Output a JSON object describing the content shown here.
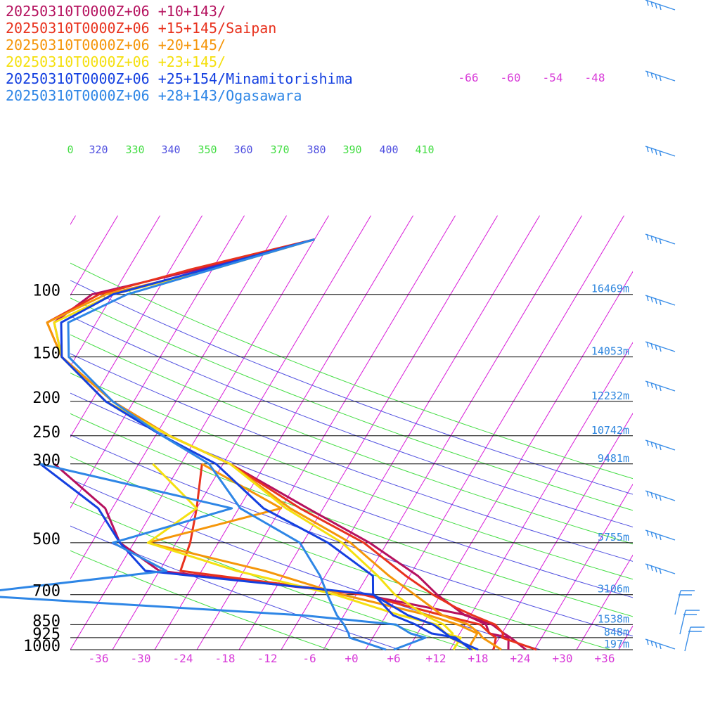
{
  "chart_data": {
    "type": "line",
    "subtype": "skew-t log-p sounding",
    "legend": [
      {
        "label": "20250310T0000Z+06 +10+143/",
        "color": "#b5115e"
      },
      {
        "label": "20250310T0000Z+06 +15+145/Saipan",
        "color": "#e8321e"
      },
      {
        "label": "20250310T0000Z+06 +20+145/",
        "color": "#f5960a"
      },
      {
        "label": "20250310T0000Z+06 +23+145/",
        "color": "#f5e010"
      },
      {
        "label": "20250310T0000Z+06 +25+154/Minamitorishima",
        "color": "#1440e0"
      },
      {
        "label": "20250310T0000Z+06 +28+143/Ogasawara",
        "color": "#2e86e6"
      }
    ],
    "pressure_levels": [
      {
        "p": 100,
        "label": "100",
        "height": "16469m"
      },
      {
        "p": 150,
        "label": "150",
        "height": "14053m"
      },
      {
        "p": 200,
        "label": "200",
        "height": "12232m"
      },
      {
        "p": 250,
        "label": "250",
        "height": "10742m"
      },
      {
        "p": 300,
        "label": "300",
        "height": "9481m"
      },
      {
        "p": 500,
        "label": "500",
        "height": "5755m"
      },
      {
        "p": 700,
        "label": "700",
        "height": "3106m"
      },
      {
        "p": 850,
        "label": "850",
        "height": "1538m"
      },
      {
        "p": 925,
        "label": "925",
        "height": "848m"
      },
      {
        "p": 1000,
        "label": "1000",
        "height": "197m"
      }
    ],
    "temperature_ticks": [
      "-36",
      "-30",
      "-24",
      "-18",
      "-12",
      "-6",
      "+0",
      "+6",
      "+12",
      "+18",
      "+24",
      "+30",
      "+36"
    ],
    "skewed_isotherm_labels": [
      "-66",
      "-60",
      "-54",
      "-48"
    ],
    "theta_labels": [
      {
        "label": "0",
        "color": "#44dd44"
      },
      {
        "label": "320",
        "color": "#5050e0"
      },
      {
        "label": "330",
        "color": "#44dd44"
      },
      {
        "label": "340",
        "color": "#5050e0"
      },
      {
        "label": "350",
        "color": "#44dd44"
      },
      {
        "label": "360",
        "color": "#5050e0"
      },
      {
        "label": "370",
        "color": "#44dd44"
      },
      {
        "label": "380",
        "color": "#5050e0"
      },
      {
        "label": "390",
        "color": "#44dd44"
      },
      {
        "label": "400",
        "color": "#5050e0"
      },
      {
        "label": "410",
        "color": "#44dd44"
      }
    ],
    "xlim": [
      -40,
      40
    ],
    "ylim_hpa": [
      1000,
      70
    ],
    "y_scale": "log",
    "series": [
      {
        "name": "20250310T0000Z+06 +10+143/",
        "color": "#b5115e",
        "temperature": [
          [
            70,
            -40
          ],
          [
            85,
            -54
          ],
          [
            100,
            -67
          ],
          [
            120,
            -70
          ],
          [
            150,
            -66
          ],
          [
            200,
            -55
          ],
          [
            250,
            -44
          ],
          [
            300,
            -33
          ],
          [
            400,
            -18.2
          ],
          [
            500,
            -6.5
          ],
          [
            620,
            3.2
          ],
          [
            700,
            7.5
          ],
          [
            800,
            13.2
          ],
          [
            850,
            17.9
          ],
          [
            900,
            20.3
          ],
          [
            925,
            21.6
          ],
          [
            1000,
            24.8
          ]
        ],
        "dewpoint": [
          [
            300,
            -58
          ],
          [
            400,
            -47
          ],
          [
            500,
            -42
          ],
          [
            600,
            -34
          ],
          [
            700,
            -3
          ],
          [
            800,
            13.5
          ],
          [
            850,
            17
          ],
          [
            900,
            18.2
          ],
          [
            925,
            21.3
          ],
          [
            1000,
            22.3
          ]
        ]
      },
      {
        "name": "20250310T0000Z+06 +15+145/Saipan",
        "color": "#e8321e",
        "temperature": [
          [
            70,
            -40
          ],
          [
            85,
            -55
          ],
          [
            100,
            -66
          ],
          [
            120,
            -71
          ],
          [
            150,
            -66
          ],
          [
            200,
            -56
          ],
          [
            250,
            -44
          ],
          [
            300,
            -33
          ],
          [
            400,
            -19.3
          ],
          [
            500,
            -7.3
          ],
          [
            620,
            1.5
          ],
          [
            700,
            6.9
          ],
          [
            760,
            11.2
          ],
          [
            800,
            14.3
          ],
          [
            850,
            18.3
          ],
          [
            900,
            20.2
          ],
          [
            925,
            20.4
          ],
          [
            1000,
            26.3
          ]
        ],
        "dewpoint": [
          [
            300,
            -37
          ],
          [
            400,
            -34
          ],
          [
            500,
            -32
          ],
          [
            600,
            -31
          ],
          [
            700,
            -3
          ],
          [
            800,
            10
          ],
          [
            850,
            16.2
          ],
          [
            900,
            18.3
          ],
          [
            925,
            19.5
          ],
          [
            1000,
            20.2
          ]
        ]
      },
      {
        "name": "20250310T0000Z+06 +20+145/",
        "color": "#f5960a",
        "temperature": [
          [
            70,
            -40
          ],
          [
            85,
            -52
          ],
          [
            100,
            -65
          ],
          [
            120,
            -71
          ],
          [
            150,
            -66
          ],
          [
            200,
            -55
          ],
          [
            250,
            -44
          ],
          [
            300,
            -33
          ],
          [
            400,
            -20.7
          ],
          [
            500,
            -9.2
          ],
          [
            620,
            -0.9
          ],
          [
            700,
            4.3
          ],
          [
            800,
            10
          ],
          [
            850,
            14.5
          ],
          [
            900,
            16.8
          ],
          [
            925,
            17.6
          ],
          [
            1000,
            21.3
          ]
        ],
        "dewpoint": [
          [
            300,
            -37
          ],
          [
            400,
            -22
          ],
          [
            500,
            -38
          ],
          [
            600,
            -19
          ],
          [
            700,
            -6
          ],
          [
            800,
            8
          ],
          [
            850,
            13
          ],
          [
            900,
            16.5
          ],
          [
            925,
            16.5
          ],
          [
            1000,
            16.5
          ]
        ]
      },
      {
        "name": "20250310T0000Z+06 +23+145/",
        "color": "#f5e010",
        "temperature": [
          [
            70,
            -40
          ],
          [
            85,
            -52
          ],
          [
            100,
            -64
          ],
          [
            120,
            -70
          ],
          [
            150,
            -66
          ],
          [
            200,
            -56
          ],
          [
            250,
            -44
          ],
          [
            300,
            -33
          ],
          [
            400,
            -21.3
          ],
          [
            500,
            -10.4
          ],
          [
            620,
            -2.5
          ],
          [
            700,
            1.5
          ],
          [
            800,
            7.5
          ],
          [
            850,
            11
          ],
          [
            900,
            13
          ],
          [
            925,
            13
          ],
          [
            1000,
            17.6
          ]
        ],
        "dewpoint": [
          [
            300,
            -44
          ],
          [
            400,
            -34
          ],
          [
            500,
            -38
          ],
          [
            600,
            -23
          ],
          [
            700,
            -7
          ],
          [
            800,
            4
          ],
          [
            850,
            10
          ],
          [
            900,
            12
          ],
          [
            925,
            14.5
          ],
          [
            1000,
            14.5
          ]
        ]
      },
      {
        "name": "20250310T0000Z+06 +25+154/Minamitorishima",
        "color": "#1440e0",
        "temperature": [
          [
            70,
            -40
          ],
          [
            85,
            -53
          ],
          [
            100,
            -64
          ],
          [
            120,
            -69
          ],
          [
            150,
            -66
          ],
          [
            200,
            -56
          ],
          [
            250,
            -45
          ],
          [
            300,
            -35
          ],
          [
            400,
            -24.5
          ],
          [
            500,
            -12.4
          ],
          [
            620,
            -3.2
          ],
          [
            700,
            -1.6
          ],
          [
            800,
            5.1
          ],
          [
            850,
            9.5
          ],
          [
            900,
            12
          ],
          [
            925,
            13.1
          ],
          [
            1000,
            18
          ]
        ],
        "dewpoint": [
          [
            300,
            -60
          ],
          [
            400,
            -48
          ],
          [
            500,
            -42
          ],
          [
            600,
            -36
          ],
          [
            700,
            -1.5
          ],
          [
            800,
            3
          ],
          [
            850,
            7
          ],
          [
            900,
            10
          ],
          [
            925,
            13.8
          ],
          [
            1000,
            17
          ]
        ]
      },
      {
        "name": "20250310T0000Z+06 +28+143/Ogasawara",
        "color": "#2e86e6",
        "temperature": [
          [
            70,
            -40
          ],
          [
            85,
            -52
          ],
          [
            100,
            -62
          ],
          [
            120,
            -68
          ],
          [
            150,
            -65
          ],
          [
            200,
            -55
          ],
          [
            250,
            -45
          ],
          [
            300,
            -36
          ],
          [
            400,
            -27.8
          ],
          [
            500,
            -16.4
          ],
          [
            620,
            -10.7
          ],
          [
            700,
            -8.1
          ],
          [
            800,
            -5
          ],
          [
            850,
            -3.2
          ],
          [
            900,
            -1.8
          ],
          [
            925,
            -1.3
          ],
          [
            1000,
            4.9
          ]
        ],
        "dewpoint": [
          [
            300,
            -60
          ],
          [
            400,
            -29
          ],
          [
            500,
            -43
          ],
          [
            600,
            -33
          ],
          [
            700,
            -60
          ],
          [
            800,
            -10
          ],
          [
            850,
            4.2
          ],
          [
            900,
            7
          ],
          [
            925,
            9.5
          ],
          [
            1000,
            6
          ]
        ]
      }
    ]
  }
}
